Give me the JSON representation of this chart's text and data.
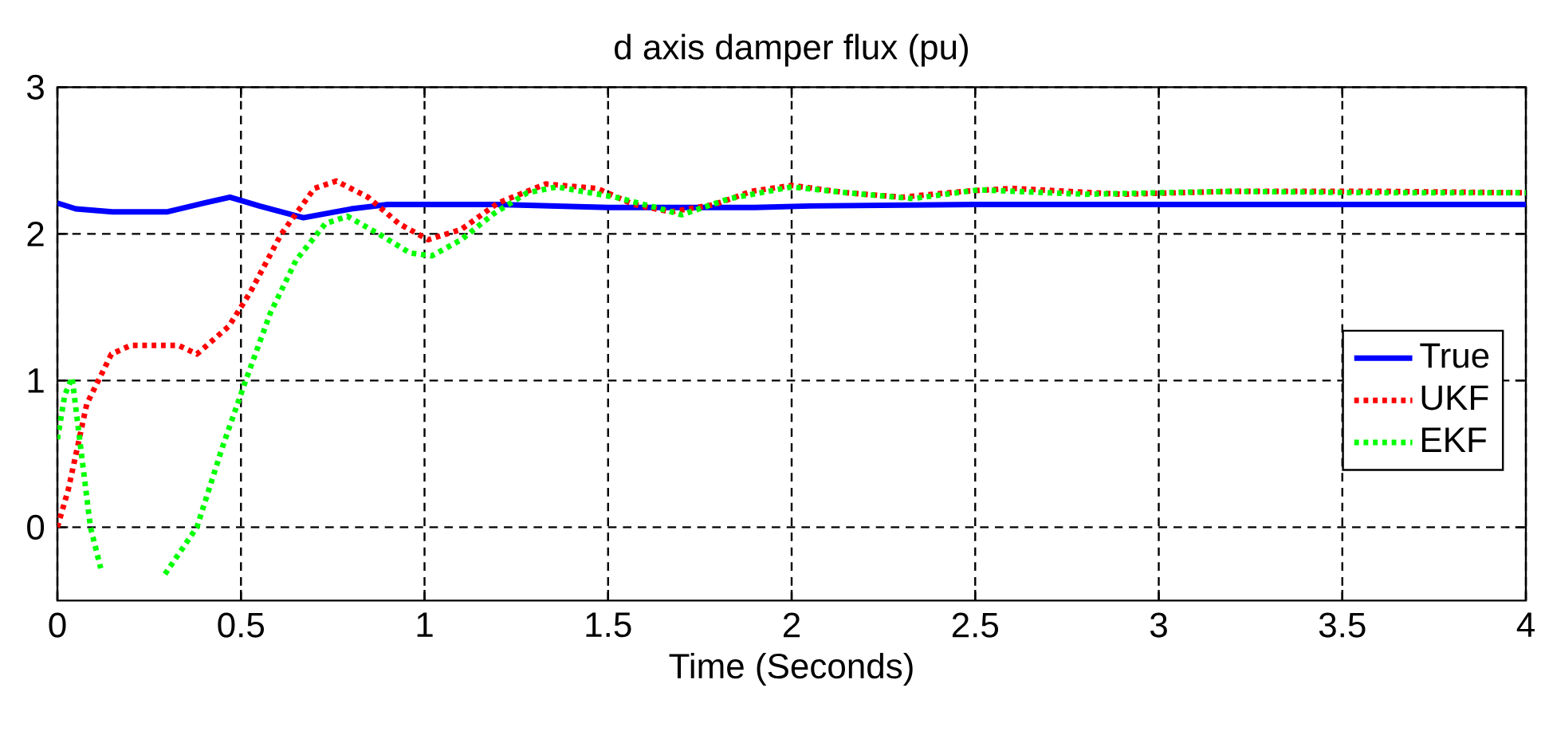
{
  "chart_data": {
    "type": "line",
    "title": "d axis damper flux (pu)",
    "xlabel": "Time (Seconds)",
    "xlim": [
      0,
      4
    ],
    "ylim": [
      -0.5,
      3
    ],
    "xticks": [
      0,
      0.5,
      1,
      1.5,
      2,
      2.5,
      3,
      3.5,
      4
    ],
    "yticks": [
      0,
      1,
      2,
      3
    ],
    "grid": true,
    "legend": "right",
    "marker": "none",
    "series": [
      {
        "name": "True",
        "color": "#0000ff",
        "line_style": "solid",
        "x": [
          0,
          0.05,
          0.15,
          0.3,
          0.4,
          0.47,
          0.55,
          0.67,
          0.8,
          0.9,
          1.2,
          1.5,
          1.9,
          2.05,
          2.5,
          3,
          3.5,
          4
        ],
        "values": [
          2.21,
          2.17,
          2.15,
          2.15,
          2.21,
          2.25,
          2.19,
          2.11,
          2.17,
          2.2,
          2.2,
          2.18,
          2.18,
          2.19,
          2.2,
          2.2,
          2.2,
          2.2
        ]
      },
      {
        "name": "UKF",
        "color": "#ff0000",
        "line_style": "dotted",
        "x": [
          0,
          0.03,
          0.08,
          0.147,
          0.2,
          0.33,
          0.38,
          0.467,
          0.525,
          0.61,
          0.7,
          0.76,
          0.846,
          0.93,
          1.01,
          1.1,
          1.2,
          1.33,
          1.47,
          1.57,
          1.67,
          1.79,
          1.89,
          2.0,
          2.15,
          2.3,
          2.47,
          2.6,
          2.9,
          3.2,
          3.6,
          4
        ],
        "values": [
          0,
          0.26,
          0.84,
          1.18,
          1.24,
          1.24,
          1.18,
          1.37,
          1.6,
          2.0,
          2.31,
          2.36,
          2.25,
          2.07,
          1.96,
          2.03,
          2.21,
          2.34,
          2.31,
          2.2,
          2.15,
          2.2,
          2.29,
          2.33,
          2.28,
          2.25,
          2.29,
          2.31,
          2.27,
          2.29,
          2.29,
          2.28
        ]
      },
      {
        "name": "EKF",
        "color": "#00ff00",
        "line_style": "dotted",
        "x": [
          0,
          0.02,
          0.04,
          0.09,
          0.118,
          0.14,
          0.2,
          0.264,
          0.293,
          0.38,
          0.45,
          0.51,
          0.58,
          0.65,
          0.73,
          0.79,
          0.875,
          0.96,
          1.02,
          1.1,
          1.19,
          1.28,
          1.36,
          1.52,
          1.66,
          1.7,
          1.83,
          2.0,
          2.15,
          2.33,
          2.51,
          2.8,
          3.2,
          3.6,
          4
        ],
        "values": [
          0.6,
          0.9,
          1.02,
          0,
          -0.28,
          null,
          null,
          null,
          -0.32,
          0,
          0.55,
          0.98,
          1.46,
          1.82,
          2.07,
          2.12,
          2.0,
          1.87,
          1.85,
          1.96,
          2.14,
          2.28,
          2.32,
          2.25,
          2.16,
          2.13,
          2.24,
          2.32,
          2.28,
          2.24,
          2.3,
          2.27,
          2.29,
          2.28,
          2.28
        ]
      }
    ]
  }
}
